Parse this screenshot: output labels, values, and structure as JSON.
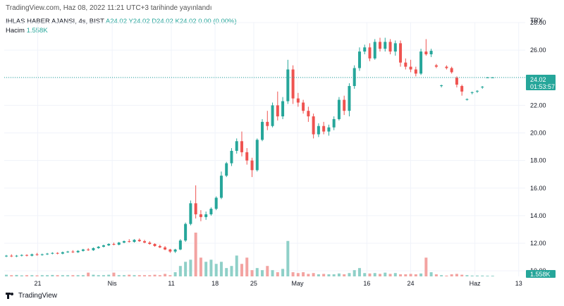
{
  "header": {
    "caption": "TradingView.com, Haz 08, 2022 11:21 UTC+3 tarihinde yayınlandı"
  },
  "legend": {
    "symbol": "IHLAS HABER AJANSI, 4s, BIST",
    "ohlc": "A24.02 Y24.02 D24.02 K24.02 0.00 (0.00%)",
    "volume_label": "Hacim",
    "volume_value": "1.558K"
  },
  "currency": "TRY",
  "price_badge": {
    "price": "24.02",
    "countdown": "01:53:57"
  },
  "volume_badge": "1.558K",
  "brand": "TradingView",
  "colors": {
    "up": "#26a69a",
    "down": "#ef5350",
    "vol_up": "#8fd0c8",
    "vol_down": "#f3a3a1",
    "grid": "#f0f3fa",
    "badge": "#26a69a"
  },
  "chart_data": {
    "type": "candlestick",
    "ylim": [
      9.6,
      28.0
    ],
    "y_ticks": [
      "28.00",
      "26.00",
      "24.00",
      "22.00",
      "20.00",
      "18.00",
      "16.00",
      "14.00",
      "12.00",
      "10.00"
    ],
    "x_ticks": [
      "21",
      "Nis",
      "11",
      "18",
      "25",
      "May",
      "16",
      "24",
      "Haz",
      "13"
    ],
    "last_price": 24.02,
    "grid": true,
    "candles": [
      [
        11.05,
        11.15,
        11.0,
        11.1
      ],
      [
        11.1,
        11.2,
        11.0,
        11.05
      ],
      [
        11.05,
        11.15,
        11.0,
        11.1
      ],
      [
        11.1,
        11.2,
        11.05,
        11.15
      ],
      [
        11.15,
        11.2,
        11.05,
        11.1
      ],
      [
        11.1,
        11.25,
        11.05,
        11.2
      ],
      [
        11.2,
        11.3,
        11.1,
        11.15
      ],
      [
        11.15,
        11.25,
        11.1,
        11.2
      ],
      [
        11.2,
        11.3,
        11.15,
        11.25
      ],
      [
        11.25,
        11.35,
        11.2,
        11.3
      ],
      [
        11.3,
        11.35,
        11.2,
        11.25
      ],
      [
        11.25,
        11.4,
        11.2,
        11.35
      ],
      [
        11.35,
        11.45,
        11.3,
        11.4
      ],
      [
        11.4,
        11.5,
        11.3,
        11.35
      ],
      [
        11.35,
        11.5,
        11.3,
        11.45
      ],
      [
        11.45,
        11.6,
        11.4,
        11.55
      ],
      [
        11.55,
        11.65,
        11.45,
        11.5
      ],
      [
        11.5,
        11.7,
        11.45,
        11.65
      ],
      [
        11.65,
        11.8,
        11.6,
        11.75
      ],
      [
        11.75,
        11.9,
        11.7,
        11.85
      ],
      [
        11.85,
        12.0,
        11.8,
        11.95
      ],
      [
        11.95,
        12.05,
        11.85,
        11.9
      ],
      [
        11.9,
        12.1,
        11.85,
        12.05
      ],
      [
        12.05,
        12.2,
        12.0,
        12.15
      ],
      [
        12.15,
        12.3,
        12.05,
        12.1
      ],
      [
        12.1,
        12.3,
        12.05,
        12.25
      ],
      [
        12.25,
        12.35,
        12.1,
        12.15
      ],
      [
        12.15,
        12.25,
        12.0,
        12.05
      ],
      [
        12.05,
        12.15,
        11.9,
        11.95
      ],
      [
        11.95,
        12.0,
        11.75,
        11.8
      ],
      [
        11.8,
        11.9,
        11.65,
        11.7
      ],
      [
        11.7,
        11.8,
        11.5,
        11.55
      ],
      [
        11.55,
        11.6,
        11.3,
        11.4
      ],
      [
        11.4,
        11.6,
        11.3,
        11.55
      ],
      [
        11.55,
        12.3,
        11.5,
        12.2
      ],
      [
        12.2,
        13.5,
        12.1,
        13.4
      ],
      [
        13.4,
        15.1,
        13.3,
        14.9
      ],
      [
        14.9,
        16.2,
        13.8,
        14.1
      ],
      [
        14.1,
        14.4,
        13.6,
        13.9
      ],
      [
        13.9,
        14.3,
        13.7,
        14.1
      ],
      [
        14.1,
        14.6,
        14.0,
        14.5
      ],
      [
        14.5,
        15.4,
        14.4,
        15.3
      ],
      [
        15.3,
        17.2,
        15.2,
        16.9
      ],
      [
        16.9,
        17.9,
        16.8,
        17.8
      ],
      [
        17.8,
        18.9,
        17.6,
        18.7
      ],
      [
        18.7,
        19.6,
        18.5,
        19.4
      ],
      [
        19.4,
        20.1,
        18.3,
        18.6
      ],
      [
        18.6,
        18.9,
        17.7,
        18.0
      ],
      [
        18.0,
        18.2,
        16.8,
        17.3
      ],
      [
        17.3,
        19.6,
        17.2,
        19.5
      ],
      [
        19.5,
        21.0,
        19.4,
        20.8
      ],
      [
        20.8,
        21.6,
        20.2,
        20.5
      ],
      [
        20.5,
        22.2,
        20.4,
        22.0
      ],
      [
        22.0,
        23.0,
        20.9,
        21.2
      ],
      [
        21.2,
        22.6,
        21.0,
        22.3
      ],
      [
        22.3,
        25.3,
        22.1,
        24.6
      ],
      [
        24.6,
        24.9,
        22.1,
        22.5
      ],
      [
        22.5,
        22.9,
        21.9,
        22.2
      ],
      [
        22.2,
        22.4,
        21.4,
        21.6
      ],
      [
        21.6,
        21.9,
        20.8,
        21.2
      ],
      [
        21.2,
        21.4,
        19.6,
        19.9
      ],
      [
        19.9,
        20.7,
        19.7,
        20.5
      ],
      [
        20.5,
        20.8,
        19.9,
        20.1
      ],
      [
        20.1,
        20.6,
        19.8,
        20.4
      ],
      [
        20.4,
        21.2,
        20.2,
        21.0
      ],
      [
        21.0,
        22.6,
        20.9,
        22.4
      ],
      [
        22.4,
        22.7,
        21.3,
        21.6
      ],
      [
        21.6,
        23.6,
        21.2,
        23.4
      ],
      [
        23.4,
        24.9,
        23.2,
        24.7
      ],
      [
        24.7,
        26.2,
        24.5,
        25.9
      ],
      [
        25.9,
        26.4,
        25.7,
        26.2
      ],
      [
        26.2,
        26.5,
        25.2,
        25.4
      ],
      [
        25.4,
        26.8,
        25.3,
        26.6
      ],
      [
        26.6,
        26.9,
        25.9,
        26.1
      ],
      [
        26.1,
        26.9,
        25.9,
        26.6
      ],
      [
        26.6,
        26.8,
        25.7,
        25.9
      ],
      [
        25.9,
        26.7,
        25.6,
        26.5
      ],
      [
        26.5,
        26.7,
        24.8,
        25.1
      ],
      [
        25.1,
        25.4,
        24.6,
        24.8
      ],
      [
        24.8,
        25.3,
        24.4,
        24.6
      ],
      [
        24.6,
        24.8,
        24.1,
        24.3
      ],
      [
        24.3,
        26.1,
        24.2,
        25.9
      ],
      [
        25.9,
        26.8,
        25.6,
        25.7
      ],
      [
        25.7,
        26.1,
        25.5,
        25.95
      ],
      [
        24.9,
        25.0,
        24.7,
        24.8
      ],
      [
        23.4,
        23.5,
        23.3,
        23.45
      ],
      [
        24.8,
        24.9,
        24.6,
        24.7
      ],
      [
        24.7,
        24.8,
        24.3,
        24.4
      ],
      [
        24.0,
        24.1,
        23.3,
        23.5
      ],
      [
        23.4,
        23.5,
        22.7,
        23.0
      ],
      [
        22.4,
        22.5,
        22.35,
        22.45
      ],
      [
        22.9,
        23.0,
        22.8,
        22.95
      ],
      [
        23.0,
        23.1,
        22.9,
        23.05
      ],
      [
        23.3,
        23.4,
        23.2,
        23.35
      ],
      [
        24.02,
        24.05,
        24.0,
        24.02
      ],
      [
        24.02,
        24.05,
        24.0,
        24.02
      ]
    ],
    "volumes": [
      0.4,
      0.3,
      0.35,
      0.25,
      0.3,
      0.3,
      0.25,
      0.3,
      0.3,
      0.35,
      0.3,
      0.3,
      0.3,
      0.3,
      0.3,
      0.3,
      0.9,
      0.4,
      0.3,
      0.3,
      0.4,
      0.9,
      0.3,
      0.3,
      0.4,
      0.3,
      0.3,
      0.3,
      0.3,
      0.4,
      0.3,
      0.6,
      0.3,
      1.0,
      2.5,
      3.5,
      4.0,
      10.5,
      4.5,
      3.5,
      4.0,
      3.0,
      3.5,
      2.0,
      2.5,
      5.0,
      3.0,
      4.5,
      1.5,
      2.0,
      1.5,
      2.5,
      1.5,
      1.0,
      1.8,
      8.5,
      1.0,
      0.8,
      1.0,
      0.6,
      0.8,
      0.5,
      0.6,
      0.5,
      0.5,
      0.7,
      0.5,
      0.8,
      1.5,
      2.0,
      0.8,
      0.7,
      0.8,
      0.6,
      0.9,
      0.6,
      0.8,
      0.5,
      0.5,
      0.6,
      0.5,
      0.7,
      4.5,
      1.0,
      0.5,
      0.3,
      0.2,
      0.5,
      0.6,
      0.4,
      0.3,
      0.2,
      0.2,
      0.2,
      0.1,
      0.1
    ],
    "volume_max": 11.5
  }
}
